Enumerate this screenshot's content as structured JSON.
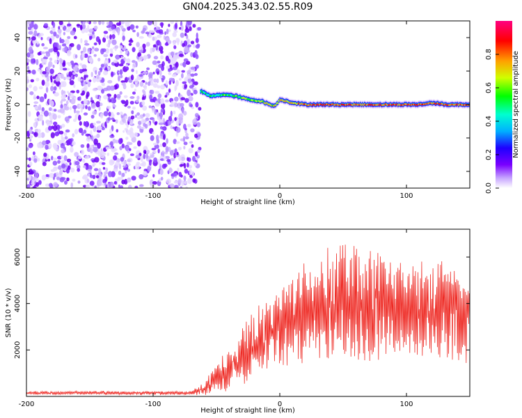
{
  "title": "GN04.2025.343.02.55.R09",
  "chart_data": [
    {
      "type": "heatmap",
      "xlabel": "Height of straight line (km)",
      "ylabel": "Frequency (Hz)",
      "xlim": [
        -200,
        150
      ],
      "ylim": [
        -50,
        50
      ],
      "x_ticks": [
        -200,
        -100,
        0,
        100
      ],
      "y_ticks": [
        40,
        20,
        0,
        -20,
        -40
      ],
      "colorbar": {
        "label": "Normalized spectral amplitude",
        "range": [
          0,
          1
        ],
        "ticks": [
          "0.0",
          "0.2",
          "0.4",
          "0.6",
          "0.8"
        ],
        "colors": [
          "#ffffff",
          "#c7a6ff",
          "#7a00ff",
          "#1e00ff",
          "#00b0ff",
          "#00ffd0",
          "#00ff00",
          "#d0ff00",
          "#ffa000",
          "#ff0000",
          "#ff0080"
        ]
      },
      "noise_region_x": [
        -200,
        -63
      ],
      "signal_track": {
        "x": [
          -63,
          -55,
          -45,
          -35,
          -25,
          -15,
          -5,
          0,
          10,
          20,
          30,
          50,
          80,
          110,
          120,
          130,
          150
        ],
        "frequency": [
          8,
          5,
          6,
          5,
          3,
          2,
          -1,
          3,
          1,
          0,
          0,
          0,
          0,
          0,
          1,
          0,
          0
        ]
      }
    },
    {
      "type": "line",
      "xlabel": "Height of straight line (km)",
      "ylabel": "SNR (10 * v/v)",
      "xlim": [
        -200,
        150
      ],
      "ylim": [
        0,
        7200
      ],
      "x_ticks": [
        -200,
        -100,
        0,
        100
      ],
      "y_ticks": [
        2000,
        4000,
        6000
      ],
      "series_color": "#ee2a24",
      "envelope": {
        "x": [
          -200,
          -70,
          -60,
          -50,
          -40,
          -30,
          -20,
          -10,
          0,
          10,
          20,
          30,
          40,
          50,
          60,
          70,
          80,
          90,
          100,
          110,
          120,
          130,
          140,
          150
        ],
        "mean": [
          150,
          150,
          300,
          800,
          1200,
          1700,
          2200,
          2600,
          3000,
          3300,
          3600,
          3700,
          3800,
          4000,
          4000,
          4000,
          3900,
          3900,
          3800,
          3700,
          3800,
          3700,
          3500,
          3400
        ],
        "amp": [
          70,
          80,
          250,
          600,
          900,
          1100,
          1300,
          1400,
          1600,
          1700,
          1900,
          2100,
          2300,
          2400,
          2300,
          2200,
          2100,
          2000,
          1900,
          1900,
          2100,
          2000,
          1800,
          1700
        ]
      }
    }
  ]
}
